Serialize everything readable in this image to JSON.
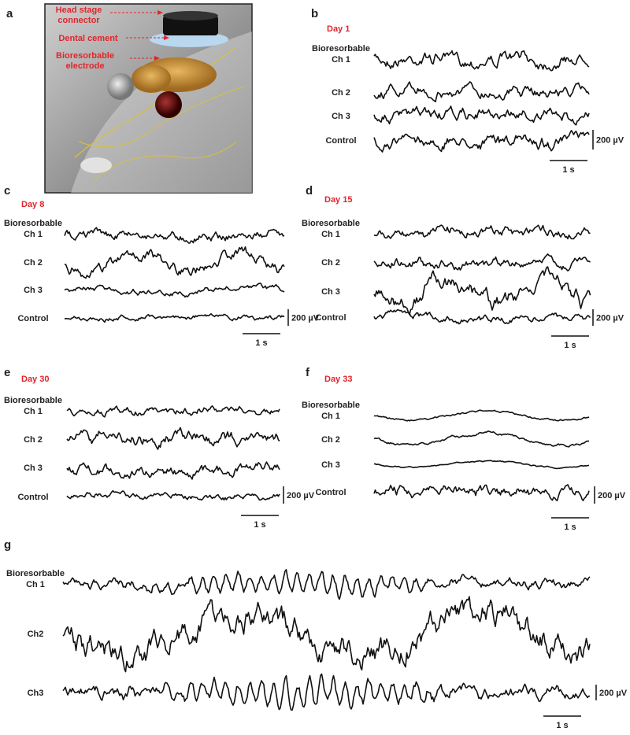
{
  "panels": [
    {
      "label": "a",
      "annotations": [
        [
          "Head stage",
          "connector"
        ],
        [
          "Dental cement"
        ],
        [
          "Bioresorbable",
          "electrode"
        ]
      ]
    },
    {
      "label": "b",
      "title": "Day 1",
      "channels": [
        [
          "Bioresorbable",
          "Ch 1"
        ],
        [
          "Ch 2"
        ],
        [
          "Ch 3"
        ],
        [
          "Control"
        ]
      ],
      "scale_v": "200 µV",
      "scale_t": "1 s"
    },
    {
      "label": "c",
      "title": "Day 8",
      "channels": [
        [
          "Bioresorbable",
          "Ch 1"
        ],
        [
          "Ch 2"
        ],
        [
          "Ch 3"
        ],
        [
          "Control"
        ]
      ],
      "scale_v": "200 µV",
      "scale_t": "1 s"
    },
    {
      "label": "d",
      "title": "Day 15",
      "channels": [
        [
          "Bioresorbable",
          "Ch 1"
        ],
        [
          "Ch 2"
        ],
        [
          "Ch 3"
        ],
        [
          "Control"
        ]
      ],
      "scale_v": "200 µV",
      "scale_t": "1 s"
    },
    {
      "label": "e",
      "title": "Day 30",
      "channels": [
        [
          "Bioresorbable",
          "Ch 1"
        ],
        [
          "Ch 2"
        ],
        [
          "Ch 3"
        ],
        [
          "Control"
        ]
      ],
      "scale_v": "200 µV",
      "scale_t": "1 s"
    },
    {
      "label": "f",
      "title": "Day 33",
      "channels": [
        [
          "Bioresorbable",
          "Ch 1"
        ],
        [
          "Ch 2"
        ],
        [
          "Ch 3"
        ],
        [
          "Control"
        ]
      ],
      "scale_v": "200 µV",
      "scale_t": "1 s"
    },
    {
      "label": "g",
      "channels": [
        [
          "Bioresorbable",
          "Ch 1"
        ],
        [
          "Ch2"
        ],
        [
          "Ch3"
        ]
      ],
      "scale_v": "200 µV",
      "scale_t": "1 s"
    }
  ]
}
